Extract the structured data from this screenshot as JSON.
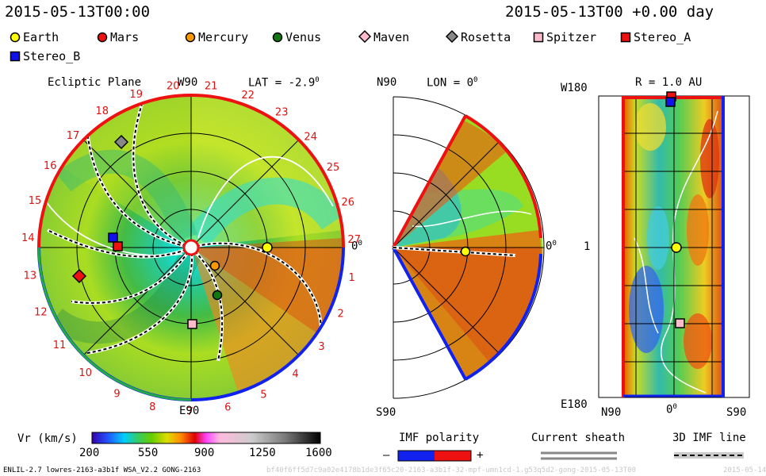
{
  "header": {
    "timestamp_left": "2015-05-13T00:00",
    "timestamp_right": "2015-05-13T00 +0.00 day"
  },
  "legend": [
    {
      "label": "Earth",
      "shape": "circle",
      "color": "#ffff00"
    },
    {
      "label": "Mars",
      "shape": "circle",
      "color": "#ee1111"
    },
    {
      "label": "Mercury",
      "shape": "circle",
      "color": "#ff9900"
    },
    {
      "label": "Venus",
      "shape": "circle",
      "color": "#117711"
    },
    {
      "label": "Maven",
      "shape": "diamond",
      "color": "#ffbbcc"
    },
    {
      "label": "Rosetta",
      "shape": "diamond",
      "color": "#888888"
    },
    {
      "label": "Spitzer",
      "shape": "square",
      "color": "#ffbbcc"
    },
    {
      "label": "Stereo_A",
      "shape": "square",
      "color": "#ee1111"
    },
    {
      "label": "Stereo_B",
      "shape": "square",
      "color": "#1111ee"
    }
  ],
  "ecliptic": {
    "title": "Ecliptic Plane",
    "top_label": "W90",
    "lat_label": "LAT = -2.9",
    "deg": "0",
    "bottom_label": "E90",
    "right_label": "0",
    "ticks": [
      "1",
      "2",
      "3",
      "4",
      "5",
      "6",
      "7",
      "8",
      "9",
      "10",
      "11",
      "12",
      "13",
      "14",
      "15",
      "16",
      "17",
      "18",
      "19",
      "20",
      "21",
      "22",
      "23",
      "24",
      "25",
      "26",
      "27"
    ]
  },
  "meridional": {
    "top_label": "N90",
    "lon_label": "LON = 0",
    "deg": "0",
    "bottom_label": "S90",
    "right_label": "0"
  },
  "map": {
    "title": "R = 1.0 AU",
    "top_left": "W180",
    "mid_left": "1",
    "bottom_left": "E180",
    "x_left": "N90",
    "x_mid": "0",
    "x_right": "S90"
  },
  "colorbar": {
    "label": "Vr (km/s)",
    "ticks": [
      "200",
      "550",
      "900",
      "1250",
      "1600"
    ]
  },
  "imf": {
    "label": "IMF polarity",
    "minus": "–",
    "plus": "+",
    "negative_color": "#1122ee",
    "positive_color": "#ee1111"
  },
  "sheath": {
    "label": "Current sheath"
  },
  "imf_line": {
    "label": "3D IMF line"
  },
  "footer": {
    "model": "ENLIL-2.7 lowres-2163-a3b1f WSA_V2.2 GONG-2163",
    "run_id": "bf40f6ff5d7c9a02e4178b1de3f65c20-2163-a3b1f-32-mpf-umn1cd-1.g53q5d2-gong-2015-05-13T00",
    "date_right": "2015-05-14"
  }
}
